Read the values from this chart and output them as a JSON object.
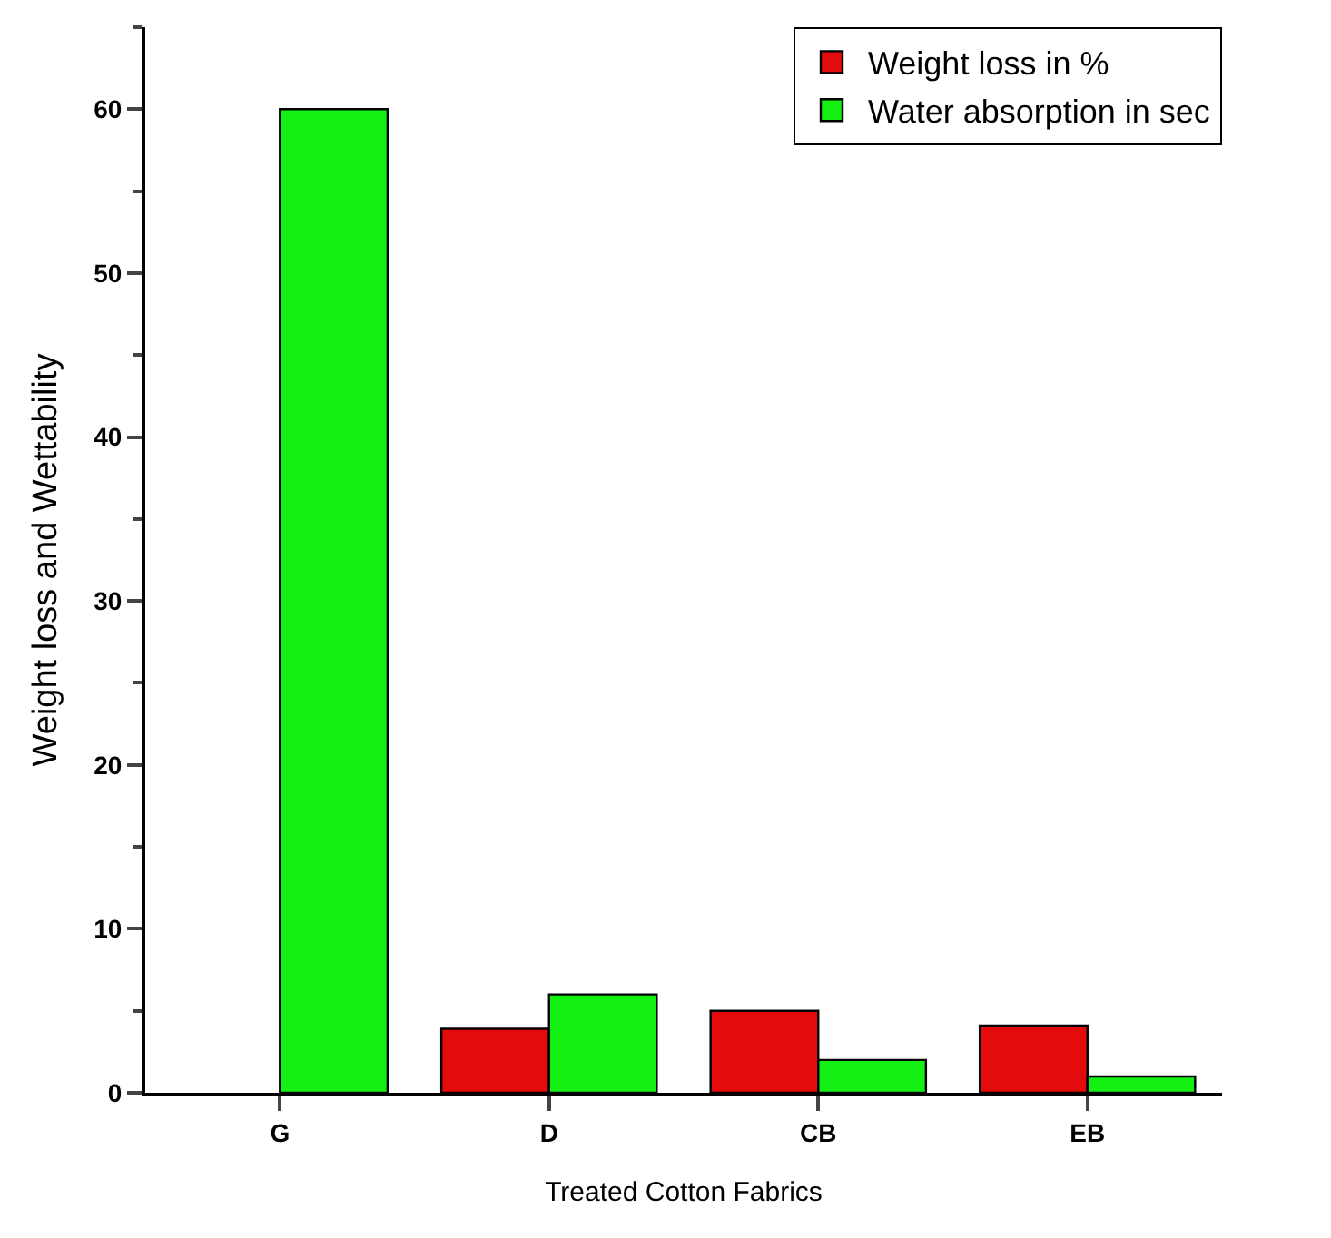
{
  "chart_data": {
    "type": "bar",
    "xlabel": "Treated Cotton Fabrics",
    "ylabel": "Weight loss and Wettability",
    "categories": [
      "G",
      "D",
      "CB",
      "EB"
    ],
    "series": [
      {
        "name": "Weight loss in %",
        "color": "#e30b0b",
        "values": [
          null,
          3.9,
          5,
          4.1
        ]
      },
      {
        "name": "Water absorption in sec",
        "color": "#14f014",
        "values": [
          60,
          6,
          2,
          1
        ]
      }
    ],
    "ylim": [
      0,
      65
    ],
    "yticks": [
      0,
      10,
      20,
      30,
      40,
      50,
      60
    ],
    "grid": false,
    "legend": "top right"
  }
}
